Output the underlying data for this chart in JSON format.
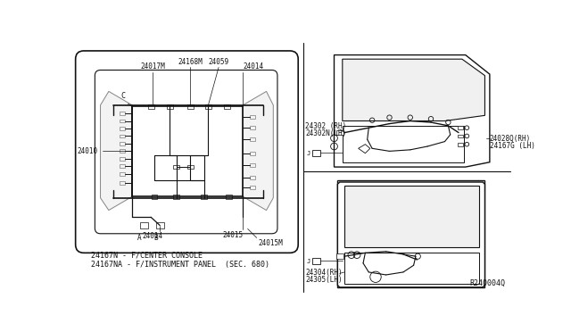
{
  "bg_color": "#ffffff",
  "line_color": "#111111",
  "title_diagram": "R240004Q",
  "notes_line1": "24167N - F/CENTER CONSOLE",
  "notes_line2": "24167NA - F/INSTRUMENT PANEL  (SEC. 680)",
  "font_size": 5.5
}
